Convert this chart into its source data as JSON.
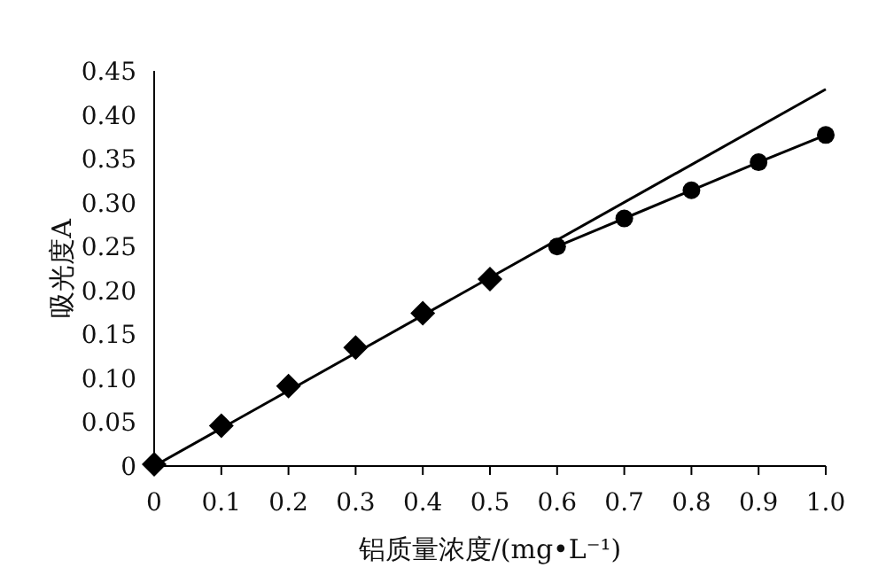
{
  "chart_data": {
    "type": "scatter",
    "xlabel": "铝质量浓度/(mg•L⁻¹)",
    "ylabel": "吸光度A",
    "xlim": [
      0,
      1
    ],
    "ylim": [
      0,
      0.45
    ],
    "xticks": [
      0,
      0.1,
      0.2,
      0.3,
      0.4,
      0.5,
      0.6,
      0.7,
      0.8,
      0.9,
      {
        "value": 1,
        "label": "1.0"
      }
    ],
    "yticks": [
      0,
      0.05,
      {
        "value": 0.1,
        "label": "0.10"
      },
      0.15,
      {
        "value": 0.2,
        "label": "0.20"
      },
      0.25,
      {
        "value": 0.3,
        "label": "0.30"
      },
      0.35,
      {
        "value": 0.4,
        "label": "0.40"
      },
      0.45
    ],
    "grid": false,
    "series": [
      {
        "type": "scatter",
        "marker": "diamond",
        "color": "#000000",
        "x": [
          0,
          0.1,
          0.2,
          0.3,
          0.4,
          0.5
        ],
        "values": [
          0.002,
          0.046,
          0.091,
          0.135,
          0.174,
          0.213
        ]
      },
      {
        "type": "line",
        "marker": "circle",
        "line_style": "solid",
        "color": "#000000",
        "x": [
          0.6,
          0.7,
          0.8,
          0.9,
          1
        ],
        "values": [
          0.25,
          0.282,
          0.314,
          0.346,
          0.377
        ]
      },
      {
        "type": "line",
        "marker": "none",
        "line_style": "solid",
        "color": "#000000",
        "x": [
          0,
          1
        ],
        "values": [
          0,
          0.429
        ]
      }
    ]
  }
}
